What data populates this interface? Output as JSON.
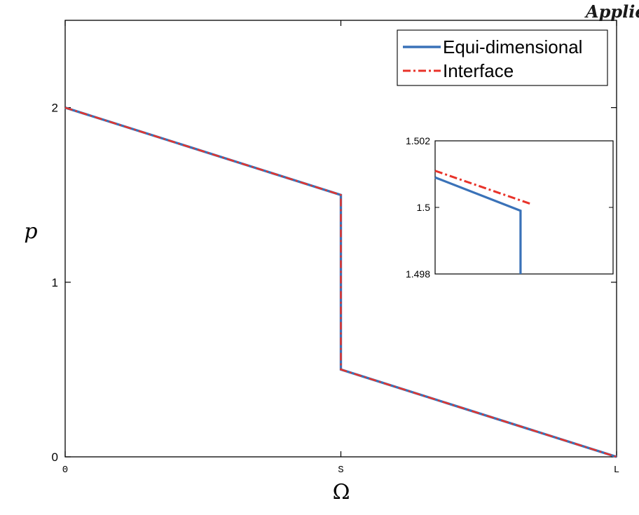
{
  "header_fragment": "Applie",
  "colors": {
    "equi": "#3a72b8",
    "interface": "#e8332a",
    "axis": "#000000"
  },
  "chart_data": [
    {
      "type": "line",
      "xlabel": "Ω",
      "ylabel": "p",
      "xlim": [
        0,
        1
      ],
      "ylim": [
        0,
        2.5
      ],
      "x_ticks": [
        {
          "value": 0,
          "label": "0"
        },
        {
          "value": 0.5,
          "label": "S"
        },
        {
          "value": 1,
          "label": "L"
        }
      ],
      "y_ticks": [
        {
          "value": 0,
          "label": "0"
        },
        {
          "value": 1,
          "label": "1"
        },
        {
          "value": 2,
          "label": "2"
        }
      ],
      "grid": false,
      "legend": "top-right",
      "series": [
        {
          "name": "Equi-dimensional",
          "style": "solid",
          "x": [
            0,
            0.5,
            0.5,
            1
          ],
          "y": [
            2,
            1.5,
            0.5,
            0
          ]
        },
        {
          "name": "Interface",
          "style": "dashdot",
          "x": [
            0,
            0.5,
            0.5,
            1
          ],
          "y": [
            2,
            1.5,
            0.5,
            0
          ]
        }
      ]
    },
    {
      "type": "line",
      "role": "inset",
      "xlim": [
        0.485,
        0.51
      ],
      "ylim": [
        1.498,
        1.502
      ],
      "y_ticks": [
        {
          "value": 1.498,
          "label": "1.498"
        },
        {
          "value": 1.5,
          "label": "1.5"
        },
        {
          "value": 1.502,
          "label": "1.502"
        }
      ],
      "grid": false,
      "series": [
        {
          "name": "Equi-dimensional",
          "style": "solid",
          "x": [
            0.485,
            0.497,
            0.497
          ],
          "y": [
            1.5009,
            1.4999,
            1.498
          ]
        },
        {
          "name": "Interface",
          "style": "dashdot",
          "x": [
            0.485,
            0.4985
          ],
          "y": [
            1.5011,
            1.5001
          ]
        }
      ]
    }
  ]
}
